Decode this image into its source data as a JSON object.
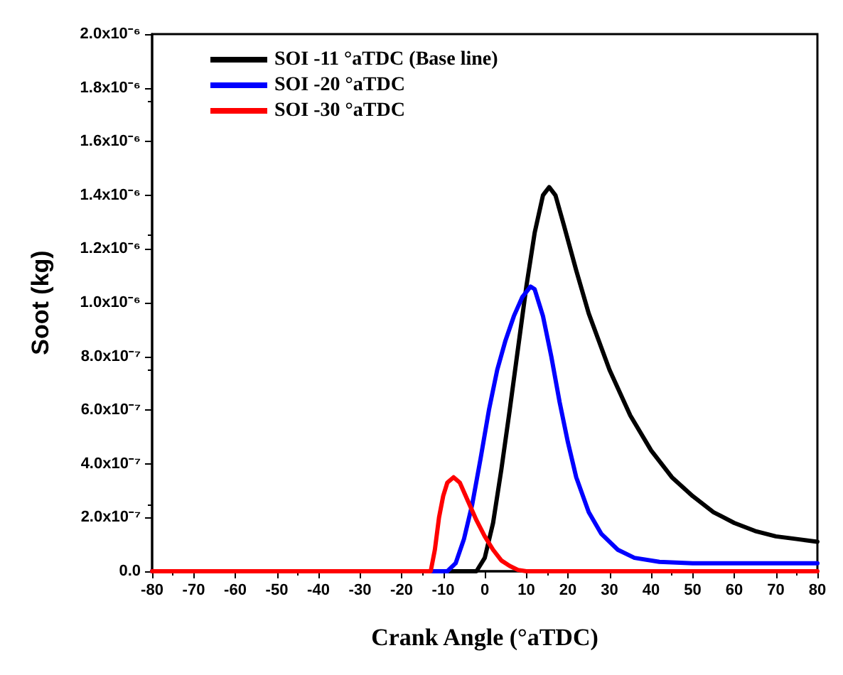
{
  "chart_data": {
    "type": "line",
    "xlabel": "Crank Angle (°aTDC)",
    "ylabel": "Soot (kg)",
    "xlim": [
      -80,
      80
    ],
    "xticks": [
      -80,
      -70,
      -60,
      -50,
      -40,
      -30,
      -20,
      -10,
      0,
      10,
      20,
      30,
      40,
      50,
      60,
      70,
      80
    ],
    "ylim": [
      0,
      2e-06
    ],
    "yticks": [
      {
        "value": 0,
        "label": "0.0"
      },
      {
        "value": 2e-07,
        "label": "2.0x10⁻⁷"
      },
      {
        "value": 4e-07,
        "label": "4.0x10⁻⁷"
      },
      {
        "value": 6e-07,
        "label": "6.0x10⁻⁷"
      },
      {
        "value": 8e-07,
        "label": "8.0x10⁻⁷"
      },
      {
        "value": 1e-06,
        "label": "1.0x10⁻⁶"
      },
      {
        "value": 1.2e-06,
        "label": "1.2x10⁻⁶"
      },
      {
        "value": 1.4e-06,
        "label": "1.4x10⁻⁶"
      },
      {
        "value": 1.6e-06,
        "label": "1.6x10⁻⁶"
      },
      {
        "value": 1.8e-06,
        "label": "1.8x10⁻⁶"
      },
      {
        "value": 2e-06,
        "label": "2.0x10⁻⁶"
      }
    ],
    "grid": false,
    "legend": "top left",
    "marker": "none",
    "line_style": "solid",
    "series": [
      {
        "name": "SOI -11 °aTDC (Base line)",
        "color": "#000000",
        "x": [
          -80,
          -2,
          0,
          2,
          4,
          6,
          8,
          10,
          12,
          14,
          15.5,
          17,
          19,
          22,
          25,
          30,
          35,
          40,
          45,
          50,
          55,
          60,
          65,
          70,
          75,
          80
        ],
        "values": [
          0,
          0,
          5e-08,
          1.8e-07,
          3.8e-07,
          6e-07,
          8.3e-07,
          1.06e-06,
          1.26e-06,
          1.4e-06,
          1.43e-06,
          1.4e-06,
          1.29e-06,
          1.12e-06,
          9.6e-07,
          7.5e-07,
          5.8e-07,
          4.5e-07,
          3.5e-07,
          2.8e-07,
          2.2e-07,
          1.8e-07,
          1.5e-07,
          1.3e-07,
          1.2e-07,
          1.1e-07
        ]
      },
      {
        "name": "SOI -20 °aTDC",
        "color": "#0000ff",
        "x": [
          -80,
          -9,
          -7,
          -5,
          -3,
          -1,
          1,
          3,
          5,
          7,
          9,
          11,
          12,
          14,
          16,
          18,
          20,
          22,
          25,
          28,
          32,
          36,
          42,
          50,
          80
        ],
        "values": [
          0,
          0,
          3e-08,
          1.2e-07,
          2.5e-07,
          4.2e-07,
          6e-07,
          7.5e-07,
          8.6e-07,
          9.5e-07,
          1.02e-06,
          1.06e-06,
          1.05e-06,
          9.5e-07,
          8e-07,
          6.3e-07,
          4.8e-07,
          3.5e-07,
          2.2e-07,
          1.4e-07,
          8e-08,
          5e-08,
          3.5e-08,
          3e-08,
          3e-08
        ]
      },
      {
        "name": "SOI -30 °aTDC",
        "color": "#ff0000",
        "x": [
          -80,
          -13,
          -12,
          -11,
          -10,
          -9,
          -7.5,
          -6,
          -4,
          -2,
          0,
          2,
          4,
          6,
          8,
          10,
          80
        ],
        "values": [
          0,
          0,
          8e-08,
          2e-07,
          2.8e-07,
          3.3e-07,
          3.5e-07,
          3.3e-07,
          2.6e-07,
          1.9e-07,
          1.3e-07,
          8e-08,
          4e-08,
          2e-08,
          5e-09,
          0,
          0
        ]
      }
    ]
  }
}
